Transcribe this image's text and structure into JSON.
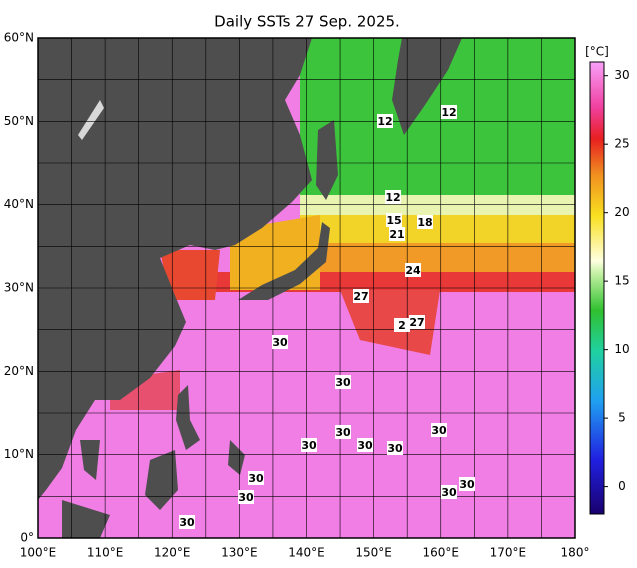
{
  "title": "Daily SSTs 27 Sep. 2025.",
  "lon_range": [
    100,
    180
  ],
  "lat_range": [
    0,
    60
  ],
  "lon_ticks": [
    {
      "value": 100,
      "label": "100°E"
    },
    {
      "value": 110,
      "label": "110°E"
    },
    {
      "value": 120,
      "label": "120°E"
    },
    {
      "value": 130,
      "label": "130°E"
    },
    {
      "value": 140,
      "label": "140°E"
    },
    {
      "value": 150,
      "label": "150°E"
    },
    {
      "value": 160,
      "label": "160°E"
    },
    {
      "value": 170,
      "label": "170°E"
    },
    {
      "value": 180,
      "label": "180°"
    }
  ],
  "lat_ticks": [
    {
      "value": 0,
      "label": "0°"
    },
    {
      "value": 10,
      "label": "10°N"
    },
    {
      "value": 20,
      "label": "20°N"
    },
    {
      "value": 30,
      "label": "30°N"
    },
    {
      "value": 40,
      "label": "40°N"
    },
    {
      "value": 50,
      "label": "50°N"
    },
    {
      "value": 60,
      "label": "60°N"
    }
  ],
  "colorbar": {
    "label": "[°C]",
    "range": [
      -2,
      31
    ],
    "ticks": [
      0,
      5,
      10,
      15,
      20,
      25,
      30
    ]
  },
  "contour_labels": [
    "12",
    "12",
    "12",
    "15",
    "18",
    "21",
    "24",
    "27",
    "2",
    "27",
    "30",
    "30",
    "30",
    "30",
    "30",
    "30",
    "30",
    "30",
    "30",
    "30",
    "30",
    "30"
  ]
}
